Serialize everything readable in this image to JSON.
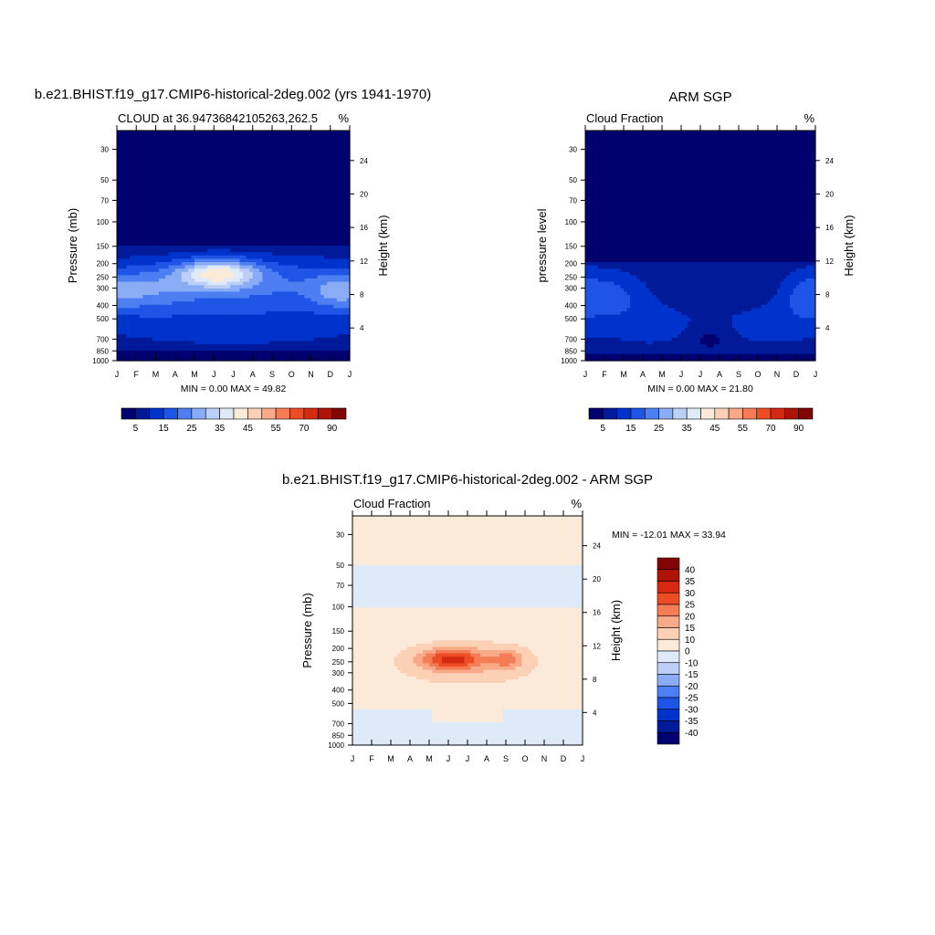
{
  "palette_cold_to_warm": [
    "#00006e",
    "#001a99",
    "#0033cc",
    "#1f55e6",
    "#4d7ef2",
    "#8aacf5",
    "#bcd0f7",
    "#dfeaf9",
    "#fcead8",
    "#fbd0b4",
    "#f8a988",
    "#f57c55",
    "#ee4c25",
    "#d62a10",
    "#ad1307",
    "#820505"
  ],
  "charts": [
    {
      "id": "model",
      "title": "b.e21.BHIST.f19_g17.CMIP6-historical-2deg.002 (yrs 1941-1970)",
      "left_string": "CLOUD at 36.94736842105263,262.5",
      "right_string": "%",
      "ylabel": "Pressure (mb)",
      "ylabel_right": "Height (km)",
      "minmax_text": "MIN =   0.00 MAX =  49.82",
      "colorbar_labels": [
        "5",
        "15",
        "25",
        "35",
        "45",
        "55",
        "70",
        "90"
      ]
    },
    {
      "id": "obs",
      "title": "ARM SGP",
      "left_string": "Cloud Fraction",
      "right_string": "%",
      "ylabel": "pressure level",
      "ylabel_right": "Height (km)",
      "minmax_text": "MIN =   0.00 MAX =  21.80",
      "colorbar_labels": [
        "5",
        "15",
        "25",
        "35",
        "45",
        "55",
        "70",
        "90"
      ]
    },
    {
      "id": "diff",
      "title": "b.e21.BHIST.f19_g17.CMIP6-historical-2deg.002 - ARM SGP",
      "left_string": "Cloud Fraction",
      "right_string": "%",
      "ylabel": "Pressure (mb)",
      "ylabel_right": "Height (km)",
      "minmax_text": "MIN = -12.01 MAX =  33.94",
      "colorbar_labels": [
        "40",
        "35",
        "30",
        "25",
        "20",
        "15",
        "10",
        "0",
        "-10",
        "-15",
        "-20",
        "-25",
        "-30",
        "-35",
        "-40"
      ]
    }
  ],
  "chart_data": [
    {
      "type": "heatmap",
      "name": "model",
      "x_ticklabels": [
        "J",
        "F",
        "M",
        "A",
        "M",
        "J",
        "J",
        "A",
        "S",
        "O",
        "N",
        "D",
        "J"
      ],
      "pressure_ticks": [
        30,
        50,
        70,
        100,
        150,
        200,
        250,
        300,
        400,
        500,
        700,
        850,
        1000
      ],
      "height_ticks_km": [
        4,
        8,
        12,
        16,
        20,
        24
      ],
      "ylim_mb": [
        1000,
        22
      ],
      "contour_levels": [
        5,
        10,
        15,
        20,
        25,
        30,
        35,
        40,
        45,
        50,
        55,
        60,
        70,
        80,
        90
      ],
      "min": 0.0,
      "max": 49.82,
      "features": [
        {
          "desc": "upper cloud layer",
          "peak_month": 5.2,
          "peak_pressure_mb": 235,
          "peak_value": 45
        }
      ]
    },
    {
      "type": "heatmap",
      "name": "obs",
      "x_ticklabels": [
        "J",
        "F",
        "M",
        "A",
        "M",
        "J",
        "J",
        "A",
        "S",
        "O",
        "N",
        "D",
        "J"
      ],
      "pressure_ticks": [
        30,
        50,
        70,
        100,
        150,
        200,
        250,
        300,
        400,
        500,
        700,
        850,
        1000
      ],
      "height_ticks_km": [
        4,
        8,
        12,
        16,
        20,
        24
      ],
      "ylim_mb": [
        1000,
        22
      ],
      "contour_levels": [
        5,
        10,
        15,
        20,
        25,
        30,
        35,
        40,
        45,
        50,
        55,
        60,
        70,
        80,
        90
      ],
      "min": 0.0,
      "max": 21.8
    },
    {
      "type": "heatmap",
      "name": "difference",
      "x_ticklabels": [
        "J",
        "F",
        "M",
        "A",
        "M",
        "J",
        "J",
        "A",
        "S",
        "O",
        "N",
        "D",
        "J"
      ],
      "pressure_ticks": [
        30,
        50,
        70,
        100,
        150,
        200,
        250,
        300,
        400,
        500,
        700,
        850,
        1000
      ],
      "height_ticks_km": [
        4,
        8,
        12,
        16,
        20,
        24
      ],
      "ylim_mb": [
        1000,
        22
      ],
      "contour_levels": [
        -40,
        -35,
        -30,
        -25,
        -20,
        -15,
        -10,
        0,
        10,
        15,
        20,
        25,
        30,
        35,
        40
      ],
      "min": -12.01,
      "max": 33.94,
      "features": [
        {
          "desc": "positive bias max",
          "peak_month": 5.2,
          "peak_pressure_mb": 240,
          "peak_value": 33.94
        }
      ]
    }
  ]
}
